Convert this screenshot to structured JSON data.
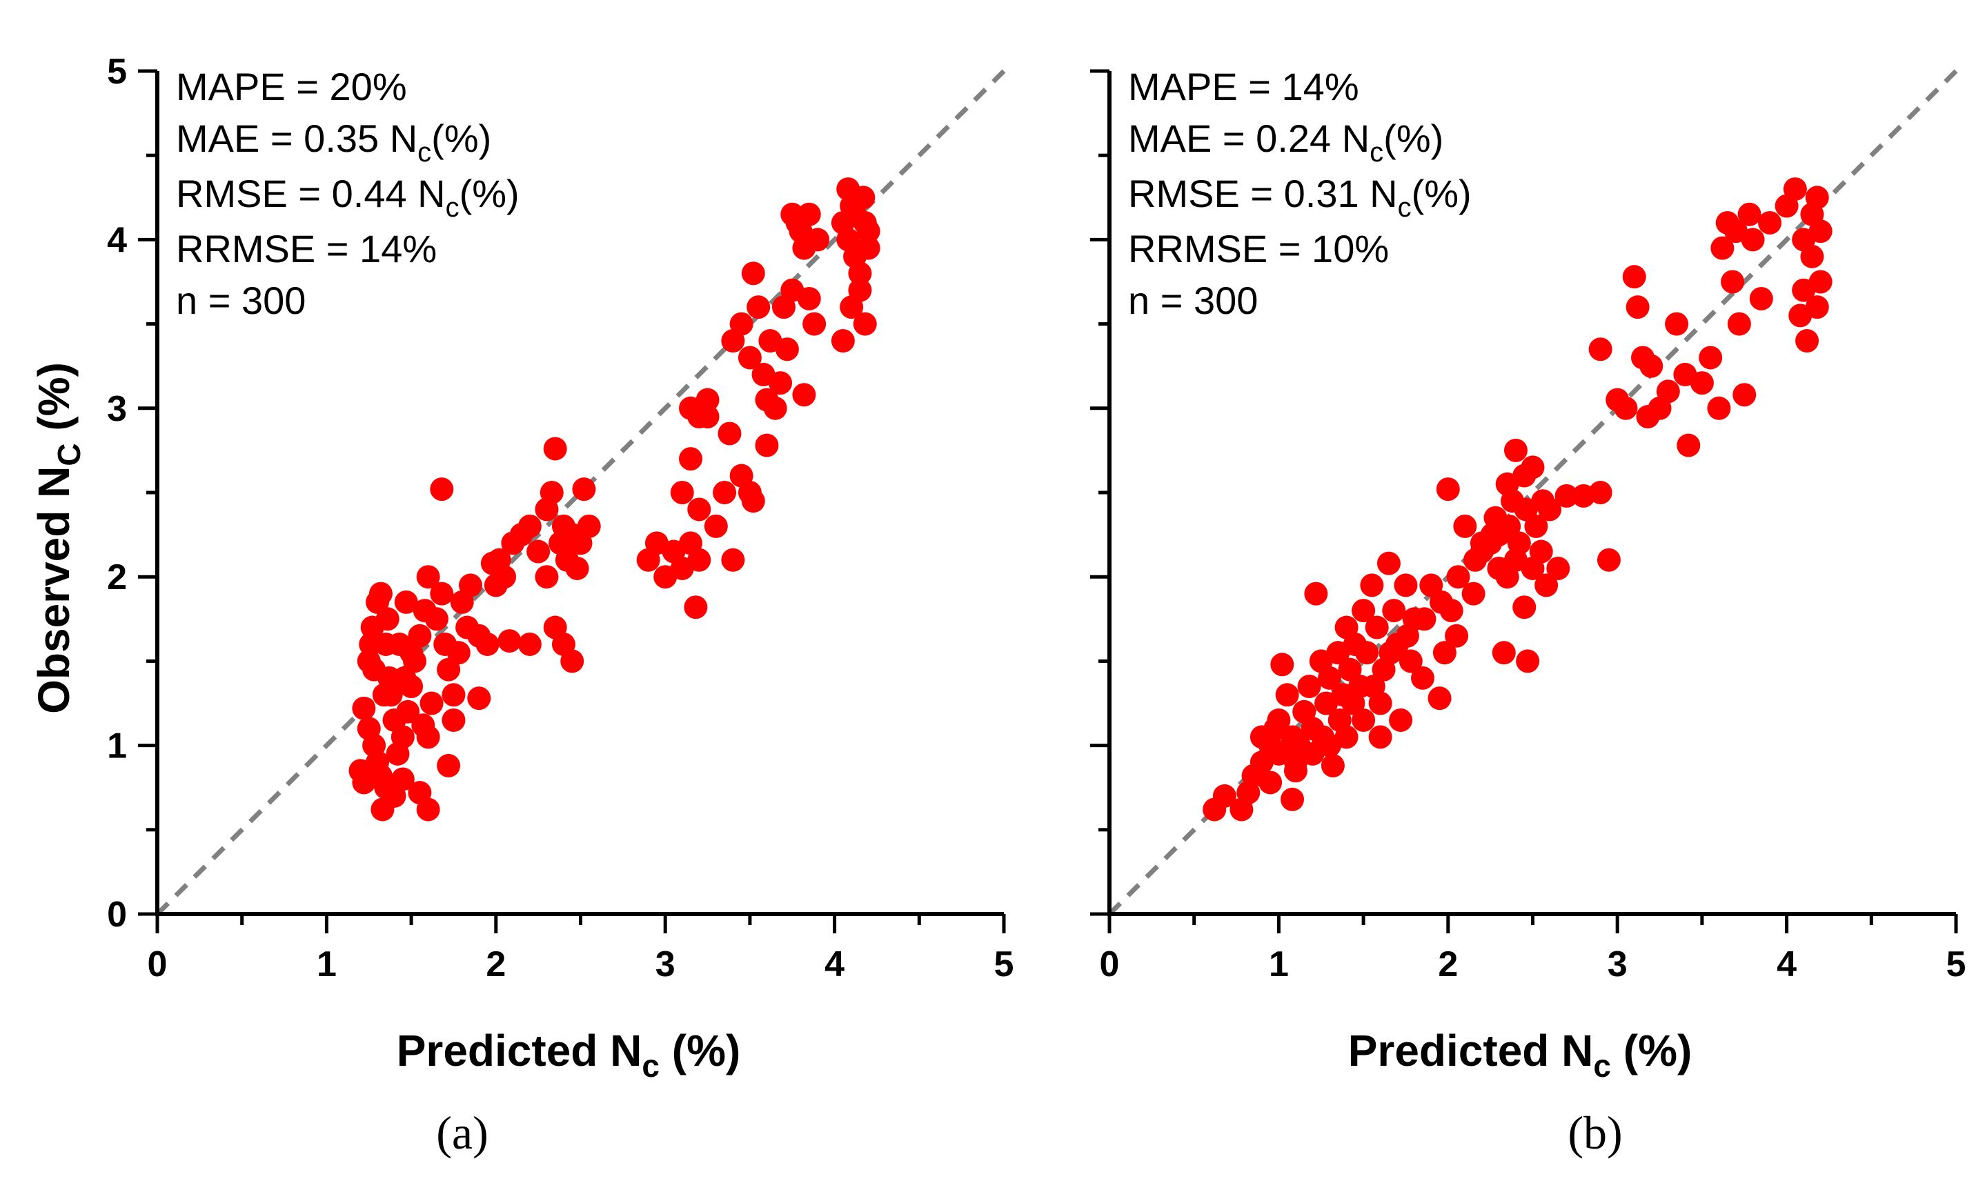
{
  "chart_data": [
    {
      "type": "scatter",
      "panel_label": "(a)",
      "xlabel": "Predicted N_c (%)",
      "xlabel_main": "Predicted N",
      "xlabel_sub": "c",
      "xlabel_rest": " (%)",
      "ylabel": "Observed N_C (%)",
      "ylabel_main": "Observed N",
      "ylabel_sub": "C",
      "ylabel_rest": " (%)",
      "xlim": [
        0,
        5
      ],
      "ylim": [
        0,
        5
      ],
      "xticks": [
        "0",
        "1",
        "2",
        "3",
        "4",
        "5"
      ],
      "yticks": [
        "0",
        "1",
        "2",
        "3",
        "4",
        "5"
      ],
      "reference_line": "1:1",
      "stats": {
        "mape": "MAPE = 20%",
        "mae_main": "MAE = 0.35 N",
        "mae_sub": "c",
        "mae_rest": "(%)",
        "rmse_main": "RMSE = 0.44 N",
        "rmse_sub": "c",
        "rmse_rest": "(%)",
        "rrmse": "RRMSE = 14%",
        "n": "n = 300"
      },
      "point_color": "#ff0000",
      "points": [
        [
          1.22,
          1.22
        ],
        [
          1.25,
          1.5
        ],
        [
          1.27,
          1.7
        ],
        [
          1.3,
          1.85
        ],
        [
          1.32,
          1.9
        ],
        [
          1.35,
          1.6
        ],
        [
          1.37,
          1.4
        ],
        [
          1.38,
          1.3
        ],
        [
          1.4,
          1.15
        ],
        [
          1.28,
          1.0
        ],
        [
          1.3,
          0.9
        ],
        [
          1.32,
          0.82
        ],
        [
          1.35,
          0.75
        ],
        [
          1.33,
          0.62
        ],
        [
          1.4,
          0.7
        ],
        [
          1.45,
          0.8
        ],
        [
          1.42,
          0.95
        ],
        [
          1.45,
          1.05
        ],
        [
          1.48,
          1.2
        ],
        [
          1.5,
          1.35
        ],
        [
          1.52,
          1.5
        ],
        [
          1.55,
          1.65
        ],
        [
          1.58,
          1.8
        ],
        [
          1.6,
          2.0
        ],
        [
          1.65,
          1.75
        ],
        [
          1.68,
          1.9
        ],
        [
          1.7,
          1.6
        ],
        [
          1.72,
          1.45
        ],
        [
          1.75,
          1.3
        ],
        [
          1.78,
          1.55
        ],
        [
          1.8,
          1.85
        ],
        [
          1.83,
          1.7
        ],
        [
          1.85,
          1.95
        ],
        [
          1.9,
          1.65
        ],
        [
          1.95,
          1.6
        ],
        [
          2.0,
          1.95
        ],
        [
          1.98,
          2.08
        ],
        [
          2.02,
          2.1
        ],
        [
          2.05,
          2.0
        ],
        [
          2.08,
          1.62
        ],
        [
          2.1,
          2.2
        ],
        [
          2.15,
          2.25
        ],
        [
          2.2,
          2.3
        ],
        [
          2.25,
          2.15
        ],
        [
          2.3,
          2.4
        ],
        [
          2.33,
          2.5
        ],
        [
          2.35,
          2.76
        ],
        [
          2.38,
          2.2
        ],
        [
          2.4,
          2.3
        ],
        [
          2.42,
          2.1
        ],
        [
          2.45,
          2.25
        ],
        [
          2.48,
          2.05
        ],
        [
          2.5,
          2.2
        ],
        [
          2.52,
          2.52
        ],
        [
          2.55,
          2.3
        ],
        [
          2.35,
          1.7
        ],
        [
          2.4,
          1.6
        ],
        [
          2.45,
          1.5
        ],
        [
          2.3,
          2.0
        ],
        [
          2.2,
          1.6
        ],
        [
          1.68,
          2.52
        ],
        [
          1.2,
          0.85
        ],
        [
          1.22,
          0.78
        ],
        [
          1.25,
          1.1
        ],
        [
          1.28,
          1.45
        ],
        [
          1.6,
          0.62
        ],
        [
          1.55,
          0.72
        ],
        [
          1.72,
          0.88
        ],
        [
          1.6,
          1.05
        ],
        [
          1.75,
          1.15
        ],
        [
          1.9,
          1.28
        ],
        [
          1.5,
          1.55
        ],
        [
          1.47,
          1.85
        ],
        [
          1.62,
          1.25
        ],
        [
          1.57,
          1.12
        ],
        [
          1.36,
          1.75
        ],
        [
          1.43,
          1.6
        ],
        [
          1.34,
          1.3
        ],
        [
          1.26,
          1.6
        ],
        [
          1.46,
          1.4
        ],
        [
          2.9,
          2.1
        ],
        [
          2.95,
          2.2
        ],
        [
          3.0,
          2.0
        ],
        [
          3.05,
          2.15
        ],
        [
          3.1,
          2.05
        ],
        [
          3.15,
          2.2
        ],
        [
          3.18,
          1.82
        ],
        [
          3.2,
          2.1
        ],
        [
          3.1,
          2.5
        ],
        [
          3.15,
          2.7
        ],
        [
          3.2,
          2.4
        ],
        [
          3.25,
          2.95
        ],
        [
          3.3,
          2.3
        ],
        [
          3.35,
          2.5
        ],
        [
          3.38,
          2.85
        ],
        [
          3.4,
          2.1
        ],
        [
          3.45,
          2.6
        ],
        [
          3.5,
          2.5
        ],
        [
          3.52,
          2.45
        ],
        [
          3.15,
          3.0
        ],
        [
          3.2,
          2.95
        ],
        [
          3.25,
          3.05
        ],
        [
          3.4,
          3.4
        ],
        [
          3.45,
          3.5
        ],
        [
          3.5,
          3.3
        ],
        [
          3.52,
          3.8
        ],
        [
          3.55,
          3.6
        ],
        [
          3.58,
          3.2
        ],
        [
          3.6,
          3.05
        ],
        [
          3.62,
          3.4
        ],
        [
          3.65,
          3.0
        ],
        [
          3.68,
          3.15
        ],
        [
          3.7,
          3.6
        ],
        [
          3.72,
          3.35
        ],
        [
          3.75,
          4.15
        ],
        [
          3.78,
          4.1
        ],
        [
          3.8,
          4.05
        ],
        [
          3.82,
          3.95
        ],
        [
          3.85,
          3.65
        ],
        [
          3.88,
          3.5
        ],
        [
          3.9,
          4.0
        ],
        [
          3.82,
          3.08
        ],
        [
          3.6,
          2.78
        ],
        [
          3.75,
          3.7
        ],
        [
          3.85,
          4.15
        ],
        [
          4.05,
          4.1
        ],
        [
          4.08,
          4.3
        ],
        [
          4.1,
          4.2
        ],
        [
          4.12,
          3.9
        ],
        [
          4.15,
          3.7
        ],
        [
          4.18,
          3.5
        ],
        [
          4.2,
          4.05
        ],
        [
          4.05,
          3.4
        ],
        [
          4.1,
          3.6
        ],
        [
          4.15,
          3.8
        ],
        [
          4.17,
          4.25
        ],
        [
          4.2,
          3.95
        ],
        [
          4.08,
          4.0
        ],
        [
          4.12,
          4.15
        ],
        [
          4.18,
          4.1
        ]
      ]
    },
    {
      "type": "scatter",
      "panel_label": "(b)",
      "xlabel": "Predicted N_c (%)",
      "xlabel_main": "Predicted N",
      "xlabel_sub": "c",
      "xlabel_rest": " (%)",
      "xlim": [
        0,
        5
      ],
      "ylim": [
        0,
        5
      ],
      "xticks": [
        "0",
        "1",
        "2",
        "3",
        "4",
        "5"
      ],
      "reference_line": "1:1",
      "stats": {
        "mape": "MAPE = 14%",
        "mae_main": "MAE = 0.24 N",
        "mae_sub": "c",
        "mae_rest": "(%)",
        "rmse_main": "RMSE = 0.31 N",
        "rmse_sub": "c",
        "rmse_rest": "(%)",
        "rrmse": "RRMSE = 10%",
        "n": "n = 300"
      },
      "point_color": "#ff0000",
      "points": [
        [
          0.62,
          0.62
        ],
        [
          0.68,
          0.7
        ],
        [
          0.78,
          0.62
        ],
        [
          0.82,
          0.72
        ],
        [
          0.85,
          0.82
        ],
        [
          0.9,
          0.9
        ],
        [
          0.95,
          1.0
        ],
        [
          0.98,
          1.1
        ],
        [
          1.0,
          1.15
        ],
        [
          1.02,
          1.48
        ],
        [
          0.9,
          1.05
        ],
        [
          1.05,
          1.3
        ],
        [
          1.08,
          0.68
        ],
        [
          1.1,
          0.85
        ],
        [
          1.12,
          1.0
        ],
        [
          1.15,
          1.2
        ],
        [
          1.18,
          1.35
        ],
        [
          1.2,
          1.1
        ],
        [
          1.22,
          1.9
        ],
        [
          1.25,
          1.5
        ],
        [
          1.28,
          1.25
        ],
        [
          1.3,
          1.4
        ],
        [
          1.32,
          0.88
        ],
        [
          1.35,
          1.55
        ],
        [
          1.38,
          1.3
        ],
        [
          1.4,
          1.7
        ],
        [
          1.42,
          1.45
        ],
        [
          1.45,
          1.6
        ],
        [
          1.48,
          1.35
        ],
        [
          1.5,
          1.8
        ],
        [
          1.52,
          1.55
        ],
        [
          1.55,
          1.95
        ],
        [
          1.58,
          1.7
        ],
        [
          1.6,
          1.05
        ],
        [
          1.62,
          1.45
        ],
        [
          1.65,
          2.08
        ],
        [
          1.68,
          1.8
        ],
        [
          1.7,
          1.6
        ],
        [
          1.72,
          1.15
        ],
        [
          1.75,
          1.95
        ],
        [
          1.78,
          1.5
        ],
        [
          1.8,
          1.75
        ],
        [
          1.85,
          1.4
        ],
        [
          1.9,
          1.95
        ],
        [
          1.95,
          1.28
        ],
        [
          1.98,
          1.55
        ],
        [
          2.0,
          2.52
        ],
        [
          2.02,
          1.8
        ],
        [
          2.05,
          1.65
        ],
        [
          2.1,
          2.3
        ],
        [
          2.15,
          1.9
        ],
        [
          2.2,
          2.15
        ],
        [
          2.25,
          2.2
        ],
        [
          2.28,
          2.35
        ],
        [
          2.3,
          2.05
        ],
        [
          2.33,
          1.55
        ],
        [
          2.35,
          2.0
        ],
        [
          2.38,
          2.45
        ],
        [
          2.4,
          2.75
        ],
        [
          2.42,
          2.2
        ],
        [
          2.45,
          1.82
        ],
        [
          2.47,
          1.5
        ],
        [
          2.5,
          2.65
        ],
        [
          2.52,
          2.3
        ],
        [
          2.55,
          2.15
        ],
        [
          2.58,
          1.95
        ],
        [
          2.6,
          2.4
        ],
        [
          2.65,
          2.05
        ],
        [
          2.7,
          2.48
        ],
        [
          2.8,
          2.48
        ],
        [
          2.9,
          2.5
        ],
        [
          2.9,
          3.35
        ],
        [
          2.95,
          2.1
        ],
        [
          3.0,
          3.05
        ],
        [
          3.05,
          3.0
        ],
        [
          3.1,
          3.78
        ],
        [
          3.12,
          3.6
        ],
        [
          3.15,
          3.3
        ],
        [
          3.18,
          2.95
        ],
        [
          3.2,
          3.25
        ],
        [
          3.25,
          3.0
        ],
        [
          3.3,
          3.1
        ],
        [
          3.35,
          3.5
        ],
        [
          3.4,
          3.2
        ],
        [
          3.42,
          2.78
        ],
        [
          3.5,
          3.15
        ],
        [
          3.55,
          3.3
        ],
        [
          3.6,
          3.0
        ],
        [
          3.62,
          3.95
        ],
        [
          3.65,
          4.1
        ],
        [
          3.68,
          3.75
        ],
        [
          3.7,
          4.05
        ],
        [
          3.72,
          3.5
        ],
        [
          3.75,
          3.08
        ],
        [
          3.78,
          4.15
        ],
        [
          3.8,
          4.0
        ],
        [
          3.85,
          3.65
        ],
        [
          3.9,
          4.1
        ],
        [
          4.0,
          4.2
        ],
        [
          4.05,
          4.3
        ],
        [
          4.08,
          3.55
        ],
        [
          4.1,
          3.7
        ],
        [
          4.12,
          3.4
        ],
        [
          4.15,
          3.9
        ],
        [
          4.18,
          4.25
        ],
        [
          4.2,
          3.75
        ],
        [
          4.2,
          4.05
        ],
        [
          4.15,
          4.15
        ],
        [
          4.1,
          4.0
        ],
        [
          4.18,
          3.6
        ],
        [
          0.95,
          0.78
        ],
        [
          1.0,
          0.95
        ],
        [
          1.08,
          1.05
        ],
        [
          1.14,
          0.95
        ],
        [
          1.26,
          1.05
        ],
        [
          1.36,
          1.15
        ],
        [
          1.44,
          1.25
        ],
        [
          1.56,
          1.35
        ],
        [
          1.66,
          1.55
        ],
        [
          1.76,
          1.65
        ],
        [
          1.86,
          1.75
        ],
        [
          1.96,
          1.85
        ],
        [
          2.06,
          2.0
        ],
        [
          2.16,
          2.1
        ],
        [
          2.26,
          2.25
        ],
        [
          2.36,
          2.3
        ],
        [
          2.46,
          2.4
        ],
        [
          2.56,
          2.45
        ],
        [
          1.6,
          1.25
        ],
        [
          1.5,
          1.15
        ],
        [
          1.4,
          1.05
        ],
        [
          1.3,
          1.0
        ],
        [
          1.2,
          0.95
        ],
        [
          1.1,
          0.9
        ],
        [
          2.4,
          2.1
        ],
        [
          2.5,
          2.05
        ],
        [
          2.3,
          2.25
        ],
        [
          2.2,
          2.2
        ],
        [
          2.35,
          2.55
        ],
        [
          2.45,
          2.6
        ]
      ]
    }
  ]
}
